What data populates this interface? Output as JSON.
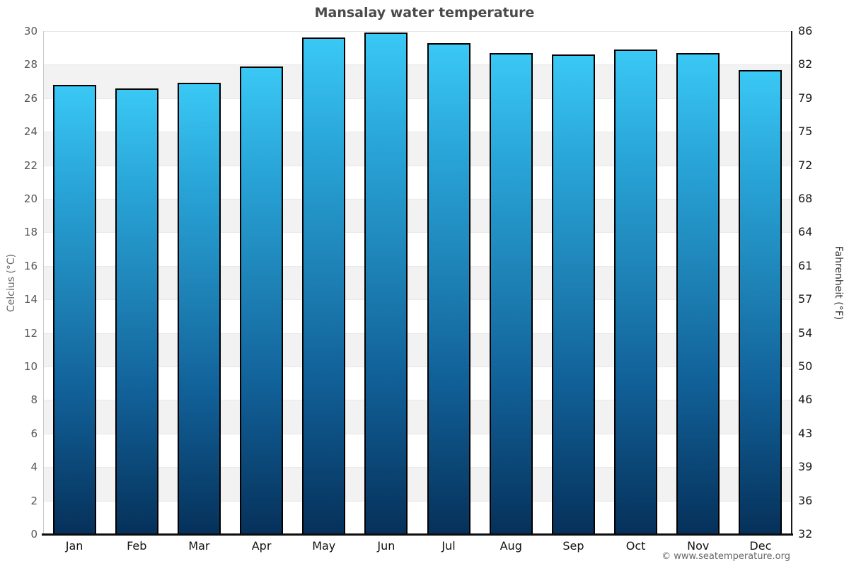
{
  "title": "Mansalay water temperature",
  "footer_text": "© www.seatemperature.org",
  "axes": {
    "left_label": "Celcius (°C)",
    "right_label": "Fahrenheit (°F)"
  },
  "chart_data": {
    "type": "bar",
    "title": "Mansalay water temperature",
    "categories": [
      "Jan",
      "Feb",
      "Mar",
      "Apr",
      "May",
      "Jun",
      "Jul",
      "Aug",
      "Sep",
      "Oct",
      "Nov",
      "Dec"
    ],
    "values": [
      26.8,
      26.6,
      26.9,
      27.9,
      29.6,
      29.9,
      29.3,
      28.7,
      28.6,
      28.9,
      28.7,
      27.7
    ],
    "unit": "°C",
    "ylabel": "Celcius (°C)",
    "y2label": "Fahrenheit (°F)",
    "ylim": [
      0,
      30
    ],
    "yticks_celsius": [
      0,
      2,
      4,
      6,
      8,
      10,
      12,
      14,
      16,
      18,
      20,
      22,
      24,
      26,
      28,
      30
    ],
    "yticks_fahrenheit": [
      32,
      36,
      39,
      43,
      46,
      50,
      54,
      57,
      61,
      64,
      68,
      72,
      75,
      79,
      82,
      86
    ],
    "grid": "horizontal-bands",
    "grid_bands_celsius": [
      [
        2,
        4
      ],
      [
        6,
        8
      ],
      [
        10,
        12
      ],
      [
        14,
        16
      ],
      [
        18,
        20
      ],
      [
        22,
        24
      ],
      [
        26,
        28
      ]
    ],
    "legend": "none",
    "colors": {
      "bar_gradient_top": "#3ac8f5",
      "bar_gradient_upper": "#29a5d8",
      "bar_gradient_mid": "#1d80b4",
      "bar_gradient_lower": "#116199",
      "bar_gradient_bottom": "#06315a",
      "bar_border": "#000000",
      "band_fill": "#f2f2f2",
      "gridline": "#e8e8e8",
      "title_text": "#4a4a4a",
      "left_axis_text": "#555555",
      "right_axis_text": "#1a1a1a",
      "footer_text_color": "#666666"
    }
  }
}
